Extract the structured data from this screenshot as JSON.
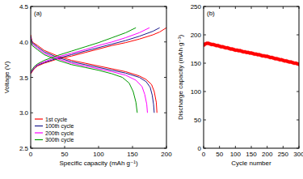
{
  "chart_data": [
    {
      "type": "line",
      "title": "(a)",
      "x_label": "Specific capacity (mAh g⁻¹)",
      "y_label": "Voltage (V)",
      "xlim": [
        0,
        200
      ],
      "xticks": [
        0,
        50,
        100,
        150,
        200
      ],
      "ylim": [
        2.5,
        4.5
      ],
      "yticks": [
        2.5,
        3.0,
        3.5,
        4.0,
        4.5
      ],
      "legend": "lower left",
      "series": [
        {
          "name": "1st cycle",
          "color": "#ff0000",
          "x": [
            0,
            5,
            10,
            20,
            40,
            60,
            80,
            100,
            120,
            140,
            160,
            180,
            190,
            200,
            null,
            0,
            2,
            10,
            20,
            40,
            60,
            80,
            100,
            120,
            140,
            160,
            170,
            178,
            182,
            185,
            186
          ],
          "values": [
            3.55,
            3.62,
            3.66,
            3.7,
            3.76,
            3.8,
            3.85,
            3.9,
            3.95,
            3.99,
            4.04,
            4.1,
            4.14,
            4.2,
            null,
            4.1,
            4.0,
            3.95,
            3.88,
            3.8,
            3.74,
            3.7,
            3.66,
            3.62,
            3.58,
            3.52,
            3.47,
            3.4,
            3.3,
            3.15,
            3.0
          ]
        },
        {
          "name": "100th cycle",
          "color": "#1a1a8c",
          "x": [
            0,
            5,
            10,
            20,
            40,
            60,
            80,
            100,
            120,
            140,
            160,
            180,
            190,
            null,
            0,
            2,
            10,
            20,
            40,
            60,
            80,
            100,
            120,
            140,
            160,
            170,
            176,
            179,
            181,
            182
          ],
          "values": [
            3.56,
            3.63,
            3.67,
            3.71,
            3.77,
            3.82,
            3.87,
            3.92,
            3.97,
            4.02,
            4.08,
            4.15,
            4.2,
            null,
            4.08,
            3.99,
            3.93,
            3.86,
            3.78,
            3.72,
            3.68,
            3.64,
            3.6,
            3.56,
            3.5,
            3.44,
            3.36,
            3.25,
            3.12,
            3.0
          ]
        },
        {
          "name": "200th cycle",
          "color": "#ff00ff",
          "x": [
            0,
            5,
            10,
            20,
            40,
            60,
            80,
            100,
            120,
            140,
            160,
            175,
            null,
            0,
            2,
            10,
            20,
            40,
            60,
            80,
            100,
            120,
            140,
            155,
            164,
            168,
            171,
            172
          ],
          "values": [
            3.57,
            3.64,
            3.68,
            3.72,
            3.79,
            3.84,
            3.89,
            3.95,
            4.0,
            4.06,
            4.13,
            4.2,
            null,
            4.06,
            3.97,
            3.91,
            3.84,
            3.76,
            3.7,
            3.66,
            3.62,
            3.58,
            3.53,
            3.46,
            3.37,
            3.26,
            3.12,
            3.0
          ]
        },
        {
          "name": "300th cycle",
          "color": "#009900",
          "x": [
            0,
            5,
            10,
            20,
            40,
            60,
            80,
            100,
            120,
            140,
            155,
            null,
            0,
            2,
            10,
            20,
            40,
            60,
            80,
            100,
            120,
            135,
            145,
            151,
            155,
            157
          ],
          "values": [
            3.58,
            3.65,
            3.69,
            3.74,
            3.81,
            3.87,
            3.93,
            3.99,
            4.06,
            4.13,
            4.2,
            null,
            4.04,
            3.95,
            3.89,
            3.82,
            3.74,
            3.68,
            3.64,
            3.6,
            3.55,
            3.5,
            3.42,
            3.3,
            3.15,
            3.0
          ]
        }
      ]
    },
    {
      "type": "scatter",
      "title": "(b)",
      "x_label": "Cycle number",
      "y_label": "Discharge capacity (mAh g⁻¹)",
      "xlim": [
        0,
        300
      ],
      "xticks": [
        0,
        50,
        100,
        150,
        200,
        250,
        300
      ],
      "ylim": [
        0,
        250
      ],
      "yticks": [
        0,
        50,
        100,
        150,
        200,
        250
      ],
      "x": [
        1,
        5,
        10,
        15,
        20,
        25,
        30,
        35,
        40,
        45,
        50,
        55,
        60,
        65,
        70,
        75,
        80,
        85,
        90,
        95,
        100,
        105,
        110,
        115,
        120,
        125,
        130,
        135,
        140,
        145,
        150,
        155,
        160,
        165,
        170,
        175,
        180,
        185,
        190,
        195,
        200,
        205,
        210,
        215,
        220,
        225,
        230,
        235,
        240,
        245,
        250,
        255,
        260,
        265,
        270,
        275,
        280,
        285,
        290,
        295,
        300
      ],
      "series": [
        {
          "color": "#ff0000",
          "marker": "circle",
          "values": [
            182,
            184,
            185,
            185,
            184,
            183,
            183,
            182,
            181,
            181,
            180,
            179,
            179,
            178,
            177,
            177,
            176,
            175,
            175,
            174,
            173,
            173,
            172,
            172,
            171,
            170,
            170,
            169,
            169,
            168,
            168,
            167,
            166,
            166,
            165,
            165,
            164,
            163,
            163,
            162,
            162,
            161,
            160,
            160,
            159,
            158,
            158,
            157,
            156,
            156,
            155,
            154,
            154,
            153,
            152,
            152,
            151,
            150,
            150,
            149,
            148
          ]
        }
      ]
    }
  ]
}
